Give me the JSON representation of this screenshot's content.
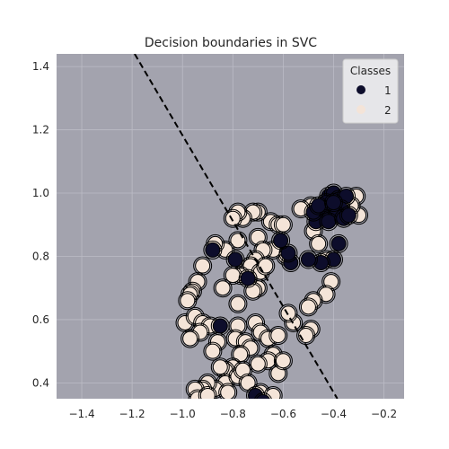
{
  "chart_data": {
    "type": "scatter",
    "title": "Decision boundaries in SVC",
    "xlabel": "",
    "ylabel": "",
    "xlim": [
      -1.5,
      -0.12
    ],
    "ylim": [
      0.35,
      1.44
    ],
    "xticks": [
      -1.4,
      -1.2,
      -1.0,
      -0.8,
      -0.6,
      -0.4,
      -0.2
    ],
    "yticks": [
      0.4,
      0.6,
      0.8,
      1.0,
      1.2,
      1.4
    ],
    "grid": true,
    "legend": {
      "title": "Classes",
      "position": "top-right"
    },
    "colors": {
      "background": "#a3a3ae",
      "class_1": "#0d0d2b",
      "class_2": "#f4e4d8",
      "boundary": "#000000",
      "grid": "#bcbcc6"
    },
    "decision_boundary": {
      "style": "dashed",
      "points": [
        [
          -1.19,
          1.44
        ],
        [
          -0.385,
          0.35
        ]
      ]
    },
    "series": [
      {
        "name": "1",
        "points": [
          [
            -0.42,
            0.99
          ],
          [
            -0.4,
            1.0
          ],
          [
            -0.38,
            0.98
          ],
          [
            -0.35,
            0.99
          ],
          [
            -0.43,
            0.97
          ],
          [
            -0.45,
            0.95
          ],
          [
            -0.41,
            0.95
          ],
          [
            -0.37,
            0.95
          ],
          [
            -0.39,
            0.93
          ],
          [
            -0.44,
            0.92
          ],
          [
            -0.47,
            0.91
          ],
          [
            -0.48,
            0.94
          ],
          [
            -0.42,
            0.91
          ],
          [
            -0.36,
            0.92
          ],
          [
            -0.34,
            0.93
          ],
          [
            -0.46,
            0.96
          ],
          [
            -0.4,
            0.97
          ],
          [
            -0.38,
            0.84
          ],
          [
            -0.4,
            0.79
          ],
          [
            -0.45,
            0.78
          ],
          [
            -0.5,
            0.79
          ],
          [
            -0.57,
            0.78
          ],
          [
            -0.58,
            0.81
          ],
          [
            -0.61,
            0.85
          ],
          [
            -0.79,
            0.79
          ],
          [
            -0.74,
            0.73
          ],
          [
            -0.88,
            0.82
          ],
          [
            -0.85,
            0.58
          ],
          [
            -0.71,
            0.36
          ],
          [
            -0.68,
            0.34
          ]
        ]
      },
      {
        "name": "2",
        "points": [
          [
            -0.3,
            0.93
          ],
          [
            -0.31,
            0.99
          ],
          [
            -0.33,
            0.96
          ],
          [
            -0.37,
            0.97
          ],
          [
            -0.49,
            0.96
          ],
          [
            -0.53,
            0.95
          ],
          [
            -0.48,
            0.88
          ],
          [
            -0.46,
            0.84
          ],
          [
            -0.43,
            0.79
          ],
          [
            -0.41,
            0.72
          ],
          [
            -0.43,
            0.68
          ],
          [
            -0.48,
            0.66
          ],
          [
            -0.5,
            0.64
          ],
          [
            -0.49,
            0.57
          ],
          [
            -0.51,
            0.55
          ],
          [
            -0.56,
            0.59
          ],
          [
            -0.58,
            0.62
          ],
          [
            -0.59,
            0.8
          ],
          [
            -0.64,
            0.82
          ],
          [
            -0.65,
            0.91
          ],
          [
            -0.62,
            0.9
          ],
          [
            -0.6,
            0.9
          ],
          [
            -0.7,
            0.94
          ],
          [
            -0.72,
            0.94
          ],
          [
            -0.76,
            0.92
          ],
          [
            -0.78,
            0.94
          ],
          [
            -0.8,
            0.92
          ],
          [
            -0.78,
            0.85
          ],
          [
            -0.7,
            0.86
          ],
          [
            -0.68,
            0.82
          ],
          [
            -0.71,
            0.79
          ],
          [
            -0.73,
            0.77
          ],
          [
            -0.69,
            0.75
          ],
          [
            -0.67,
            0.77
          ],
          [
            -0.7,
            0.7
          ],
          [
            -0.72,
            0.69
          ],
          [
            -0.77,
            0.74
          ],
          [
            -0.8,
            0.74
          ],
          [
            -0.83,
            0.82
          ],
          [
            -0.87,
            0.84
          ],
          [
            -0.84,
            0.7
          ],
          [
            -0.92,
            0.77
          ],
          [
            -0.94,
            0.72
          ],
          [
            -0.96,
            0.69
          ],
          [
            -0.97,
            0.68
          ],
          [
            -0.98,
            0.66
          ],
          [
            -0.99,
            0.59
          ],
          [
            -0.95,
            0.61
          ],
          [
            -0.92,
            0.59
          ],
          [
            -0.89,
            0.58
          ],
          [
            -0.86,
            0.53
          ],
          [
            -0.88,
            0.5
          ],
          [
            -0.93,
            0.56
          ],
          [
            -0.97,
            0.54
          ],
          [
            -0.78,
            0.65
          ],
          [
            -0.78,
            0.58
          ],
          [
            -0.79,
            0.54
          ],
          [
            -0.75,
            0.53
          ],
          [
            -0.71,
            0.59
          ],
          [
            -0.69,
            0.56
          ],
          [
            -0.66,
            0.54
          ],
          [
            -0.62,
            0.55
          ],
          [
            -0.64,
            0.49
          ],
          [
            -0.66,
            0.47
          ],
          [
            -0.7,
            0.46
          ],
          [
            -0.73,
            0.51
          ],
          [
            -0.77,
            0.49
          ],
          [
            -0.8,
            0.45
          ],
          [
            -0.83,
            0.44
          ],
          [
            -0.85,
            0.45
          ],
          [
            -0.83,
            0.4
          ],
          [
            -0.87,
            0.38
          ],
          [
            -0.9,
            0.4
          ],
          [
            -0.92,
            0.38
          ],
          [
            -0.95,
            0.38
          ],
          [
            -0.94,
            0.35
          ],
          [
            -0.9,
            0.36
          ],
          [
            -0.82,
            0.37
          ],
          [
            -0.78,
            0.42
          ],
          [
            -0.76,
            0.44
          ],
          [
            -0.74,
            0.4
          ],
          [
            -0.69,
            0.37
          ],
          [
            -0.64,
            0.36
          ],
          [
            -0.62,
            0.43
          ],
          [
            -0.6,
            0.47
          ]
        ]
      }
    ]
  }
}
